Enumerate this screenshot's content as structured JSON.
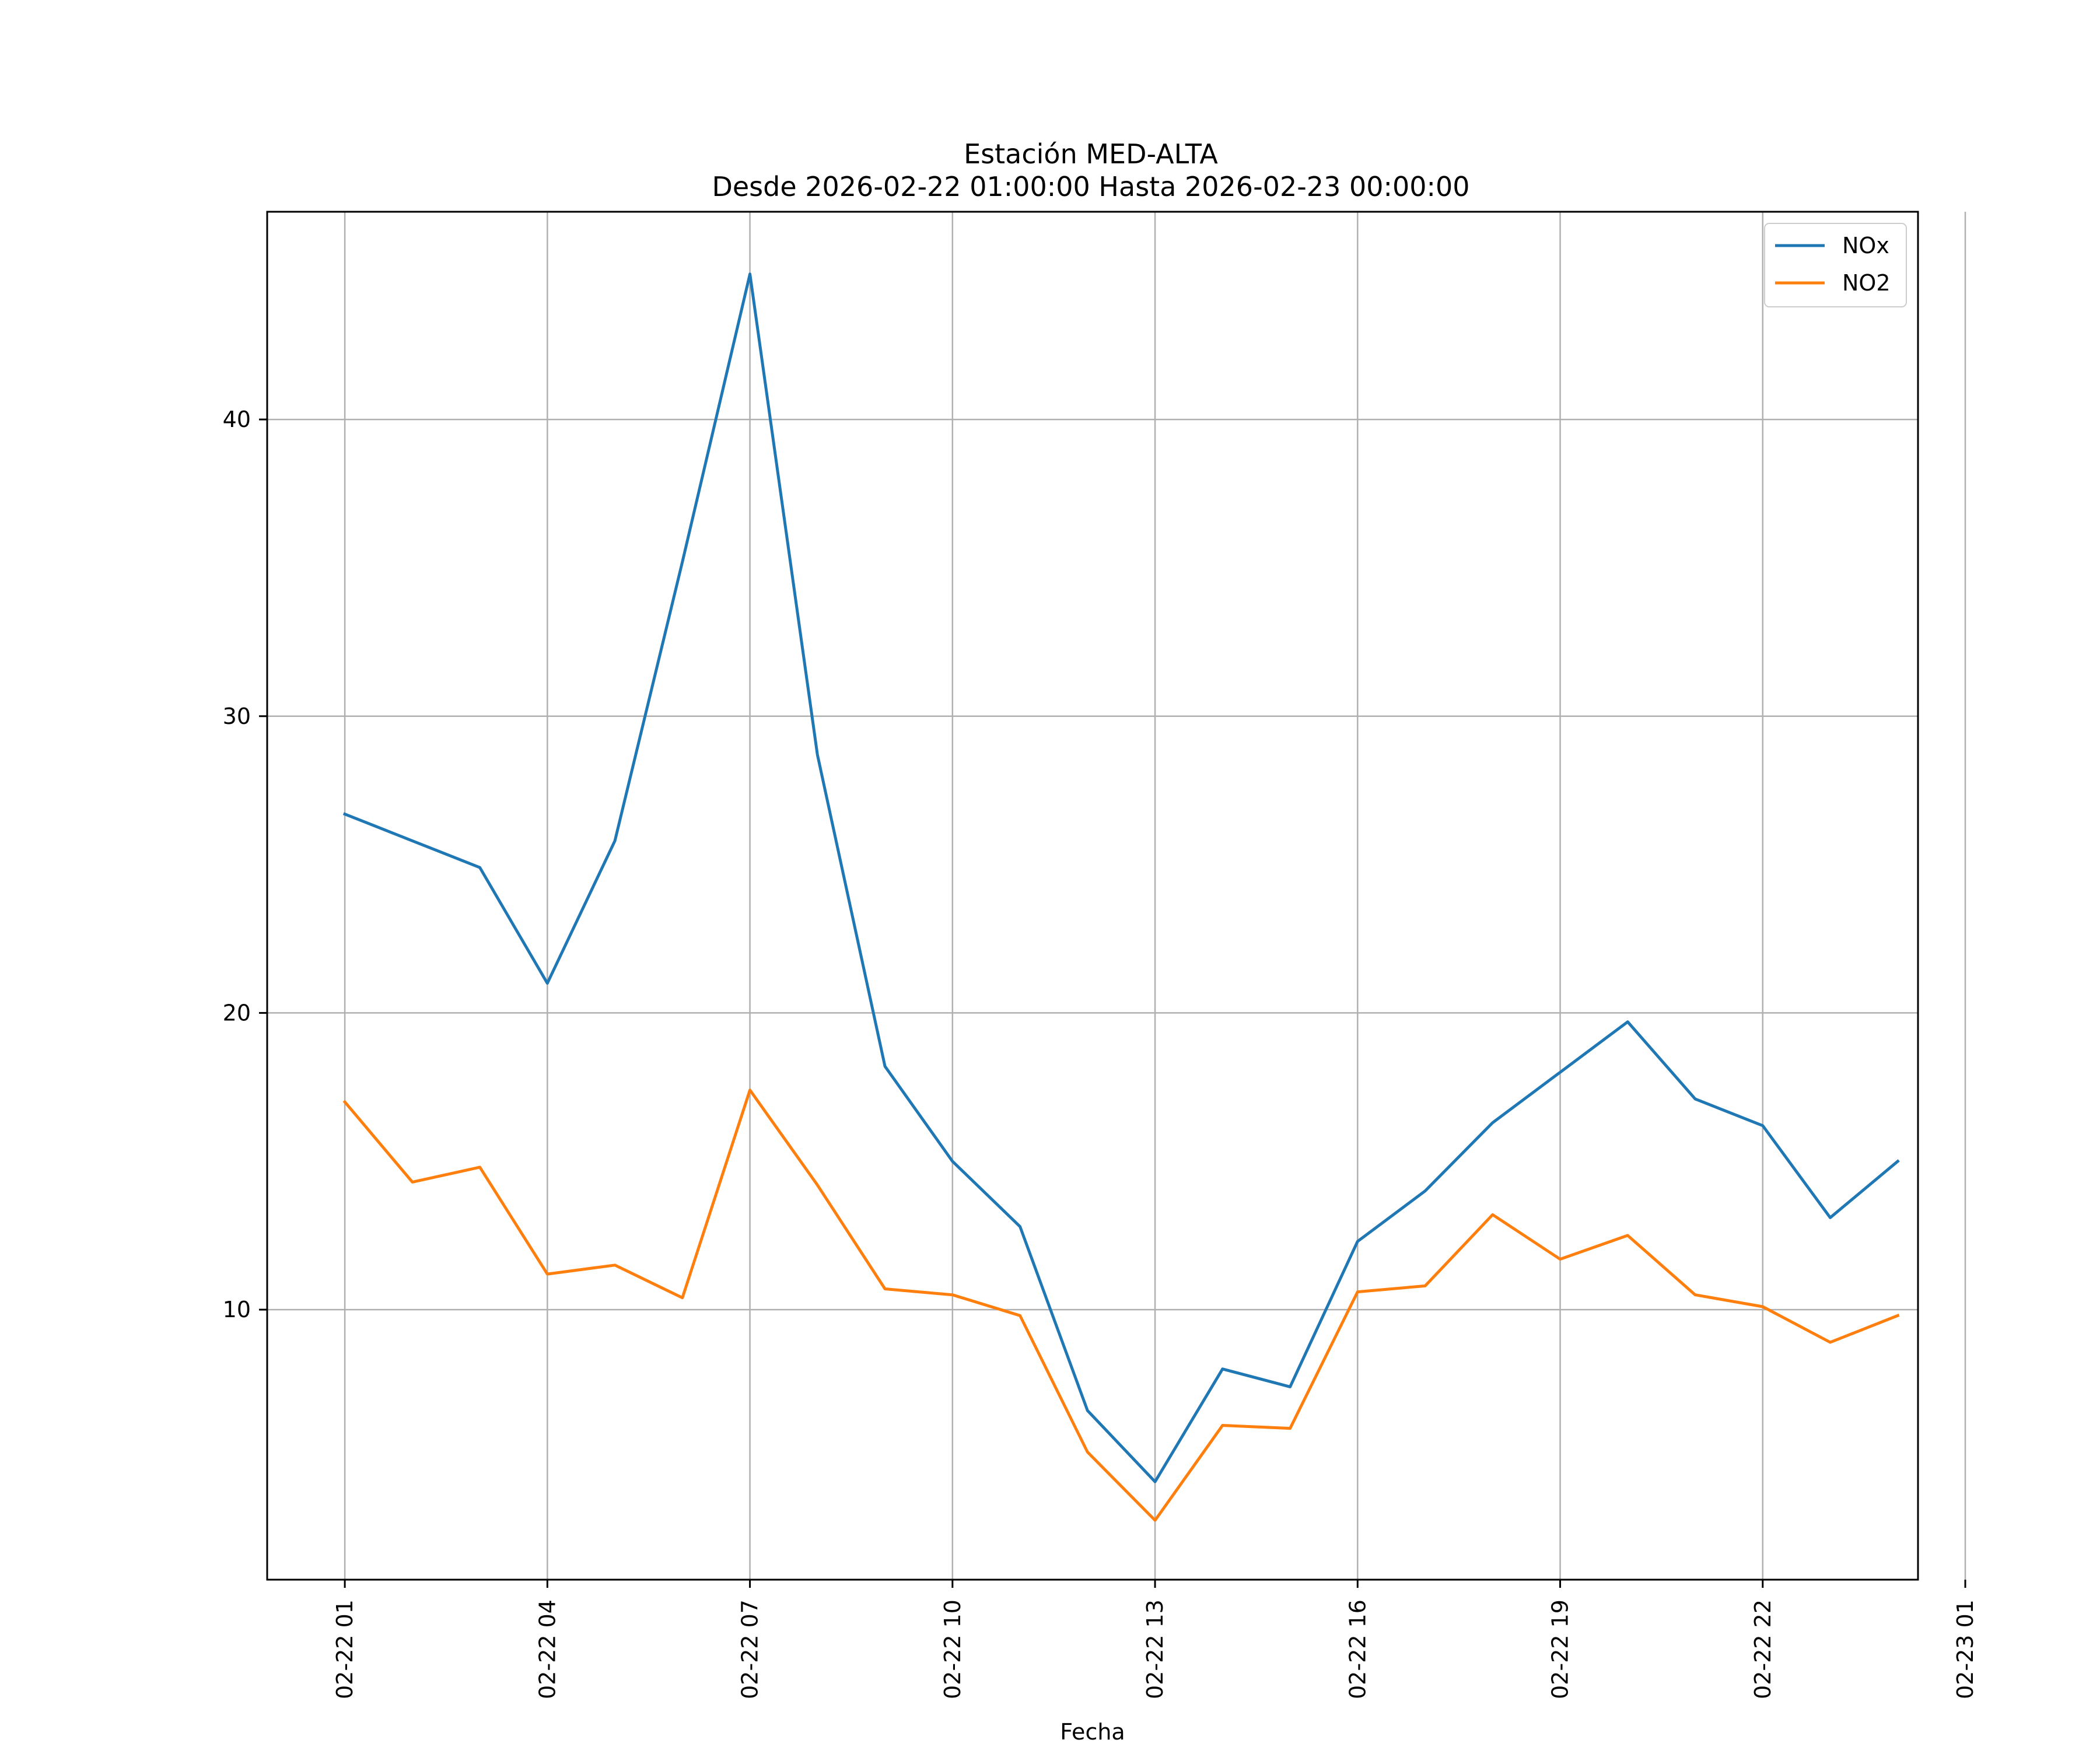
{
  "chart_data": {
    "type": "line",
    "title": "Estación MED-ALTA",
    "subtitle": "Desde 2026-02-22 01:00:00 Hasta 2026-02-23 00:00:00",
    "xlabel": "Fecha",
    "ylabel": "",
    "x_hours": [
      1,
      2,
      3,
      4,
      5,
      6,
      7,
      8,
      9,
      10,
      11,
      12,
      13,
      14,
      15,
      16,
      17,
      18,
      19,
      20,
      21,
      22,
      23,
      24
    ],
    "xlim": [
      -0.15,
      24.3
    ],
    "ylim": [
      0.9,
      47.0
    ],
    "x_ticks": [
      {
        "value": 1,
        "label": "02-22 01"
      },
      {
        "value": 4,
        "label": "02-22 04"
      },
      {
        "value": 7,
        "label": "02-22 07"
      },
      {
        "value": 10,
        "label": "02-22 10"
      },
      {
        "value": 13,
        "label": "02-22 13"
      },
      {
        "value": 16,
        "label": "02-22 16"
      },
      {
        "value": 19,
        "label": "02-22 19"
      },
      {
        "value": 22,
        "label": "02-22 22"
      },
      {
        "value": 25,
        "label": "02-23 01"
      }
    ],
    "y_ticks": [
      10,
      20,
      30,
      40
    ],
    "grid": true,
    "legend_position": "top-right",
    "series": [
      {
        "name": "NOx",
        "color": "#1f77b4",
        "values": [
          26.7,
          25.8,
          24.9,
          21.0,
          25.8,
          35.2,
          44.9,
          28.7,
          18.2,
          15.0,
          12.8,
          6.6,
          4.2,
          8.0,
          7.4,
          12.3,
          14.0,
          16.3,
          18.0,
          19.7,
          17.1,
          16.2,
          13.1,
          15.0
        ]
      },
      {
        "name": "NO2",
        "color": "#ff7f0e",
        "values": [
          17.0,
          14.3,
          14.8,
          11.2,
          11.5,
          10.4,
          17.4,
          14.2,
          10.7,
          10.5,
          9.8,
          5.2,
          2.9,
          6.1,
          6.0,
          10.6,
          10.8,
          13.2,
          11.7,
          12.5,
          10.5,
          10.1,
          8.9,
          9.8
        ]
      }
    ]
  }
}
